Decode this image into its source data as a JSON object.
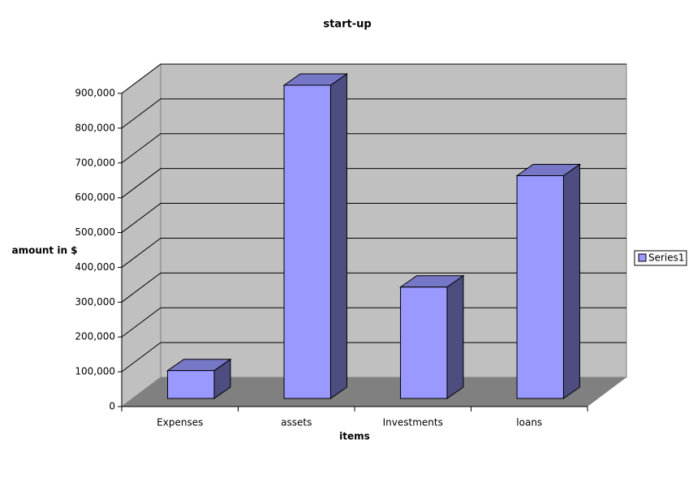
{
  "chart_data": {
    "type": "bar3d",
    "title": "start-up",
    "x_label": "items",
    "y_label": "amount in $",
    "categories": [
      "Expenses",
      "assets",
      "Investments",
      "loans"
    ],
    "series": [
      {
        "name": "Series1",
        "color": "#9999ff",
        "values": [
          80000,
          900000,
          320000,
          640000
        ]
      }
    ],
    "ylim": [
      0,
      900000
    ],
    "yticks": [
      0,
      {
        "value": 100000,
        "label": "100,000"
      },
      {
        "value": 200000,
        "label": "200,000"
      },
      {
        "value": 300000,
        "label": "300,000"
      },
      {
        "value": 400000,
        "label": "400,000"
      },
      {
        "value": 500000,
        "label": "500,000"
      },
      {
        "value": 600000,
        "label": "600,000"
      },
      {
        "value": 700000,
        "label": "700,000"
      },
      {
        "value": 800000,
        "label": "800,000"
      },
      {
        "value": 900000,
        "label": "900,000"
      }
    ],
    "grid": true,
    "legend": "right"
  }
}
